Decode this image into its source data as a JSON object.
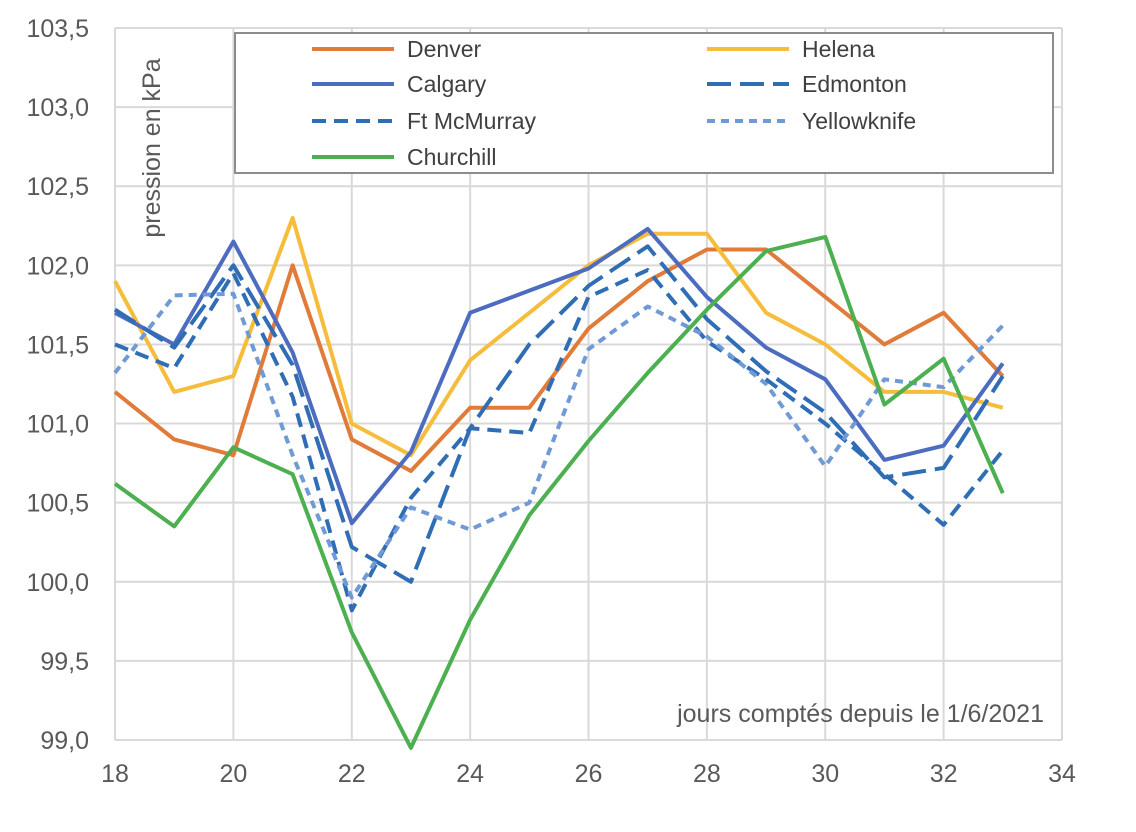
{
  "chart_data": {
    "type": "line",
    "xlabel": "jours comptés depuis le 1/6/2021",
    "ylabel": "pression en kPa",
    "xlim": [
      18,
      34
    ],
    "ylim": [
      99.0,
      103.5
    ],
    "x_ticks": [
      "18",
      "20",
      "22",
      "24",
      "26",
      "28",
      "30",
      "32",
      "34"
    ],
    "y_ticks": [
      "99,0",
      "99,5",
      "100,0",
      "100,5",
      "101,0",
      "101,5",
      "102,0",
      "102,5",
      "103,0",
      "103,5"
    ],
    "x": [
      18,
      19,
      20,
      21,
      22,
      23,
      24,
      25,
      26,
      27,
      28,
      29,
      30,
      31,
      32,
      33
    ],
    "grid": true,
    "legend_position": "top",
    "series": [
      {
        "name": "Denver",
        "color": "#e07b39",
        "dash": "solid",
        "values": [
          101.2,
          100.9,
          100.8,
          102.0,
          100.9,
          100.7,
          101.1,
          101.1,
          101.6,
          101.9,
          102.1,
          102.1,
          101.8,
          101.5,
          101.7,
          101.3
        ]
      },
      {
        "name": "Helena",
        "color": "#f5bd3b",
        "dash": "solid",
        "values": [
          101.9,
          101.2,
          101.3,
          102.3,
          101.0,
          100.8,
          101.4,
          101.7,
          102.0,
          102.2,
          102.2,
          101.7,
          101.5,
          101.2,
          101.2,
          101.1
        ]
      },
      {
        "name": "Calgary",
        "color": "#4c6cc0",
        "dash": "solid",
        "values": [
          101.7,
          101.5,
          102.15,
          101.45,
          100.37,
          100.82,
          101.7,
          101.84,
          101.98,
          102.23,
          101.8,
          101.48,
          101.28,
          100.77,
          100.86,
          101.38
        ]
      },
      {
        "name": "Edmonton",
        "color": "#2f6db5",
        "dash": "long",
        "values": [
          101.72,
          101.48,
          102.0,
          101.37,
          100.22,
          100.0,
          100.97,
          101.5,
          101.87,
          102.12,
          101.66,
          101.33,
          101.07,
          100.66,
          100.72,
          101.3
        ]
      },
      {
        "name": "Ft McMurray",
        "color": "#2f6db5",
        "dash": "medium",
        "values": [
          101.5,
          101.35,
          101.95,
          101.17,
          99.82,
          100.53,
          100.97,
          100.94,
          101.8,
          101.97,
          101.52,
          101.28,
          101.0,
          100.68,
          100.36,
          100.83
        ]
      },
      {
        "name": "Yellowknife",
        "color": "#6f9ad6",
        "dash": "short",
        "values": [
          101.32,
          101.81,
          101.82,
          100.8,
          99.9,
          100.47,
          100.33,
          100.5,
          101.47,
          101.74,
          101.55,
          101.25,
          100.73,
          101.28,
          101.23,
          101.62
        ]
      },
      {
        "name": "Churchill",
        "color": "#4caf50",
        "dash": "solid",
        "values": [
          100.62,
          100.35,
          100.85,
          100.68,
          99.68,
          98.95,
          99.76,
          100.42,
          100.89,
          101.32,
          101.72,
          102.09,
          102.18,
          101.12,
          101.41,
          100.56
        ]
      }
    ]
  }
}
